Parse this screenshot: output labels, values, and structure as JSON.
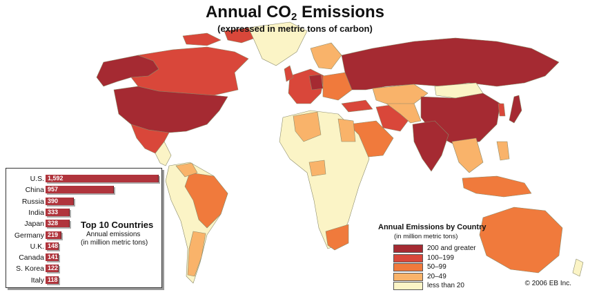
{
  "title": {
    "main": "Annual CO",
    "sub": "2",
    "end": " Emissions"
  },
  "subtitle": "(expressed in metric tons of carbon)",
  "top10": {
    "title": "Top 10 Countries",
    "sub1": "Annual emissions",
    "sub2": "(in million metric tons)",
    "items": [
      {
        "country": "U.S.",
        "value": 1592,
        "label": "1,592"
      },
      {
        "country": "China",
        "value": 957,
        "label": "957"
      },
      {
        "country": "Russia",
        "value": 390,
        "label": "390"
      },
      {
        "country": "India",
        "value": 333,
        "label": "333"
      },
      {
        "country": "Japan",
        "value": 328,
        "label": "328"
      },
      {
        "country": "Germany",
        "value": 219,
        "label": "219"
      },
      {
        "country": "U.K.",
        "value": 148,
        "label": "148"
      },
      {
        "country": "Canada",
        "value": 141,
        "label": "141"
      },
      {
        "country": "S. Korea",
        "value": 122,
        "label": "122"
      },
      {
        "country": "Italy",
        "value": 118,
        "label": "118"
      }
    ]
  },
  "legend": {
    "title": "Annual Emissions by Country",
    "subtitle": "(in million metric tons)",
    "items": [
      {
        "label": "200 and greater",
        "color": "#a52a32"
      },
      {
        "label": "100–199",
        "color": "#d9473a"
      },
      {
        "label": "50–99",
        "color": "#f07a3c"
      },
      {
        "label": "20–49",
        "color": "#f9b36a"
      },
      {
        "label": "less than 20",
        "color": "#fbf4c6"
      }
    ]
  },
  "colors": {
    "ocean": "#ffffff",
    "border": "#8a8a6a",
    "bar": "#b0343c"
  },
  "copyright": "© 2006 EB Inc."
}
